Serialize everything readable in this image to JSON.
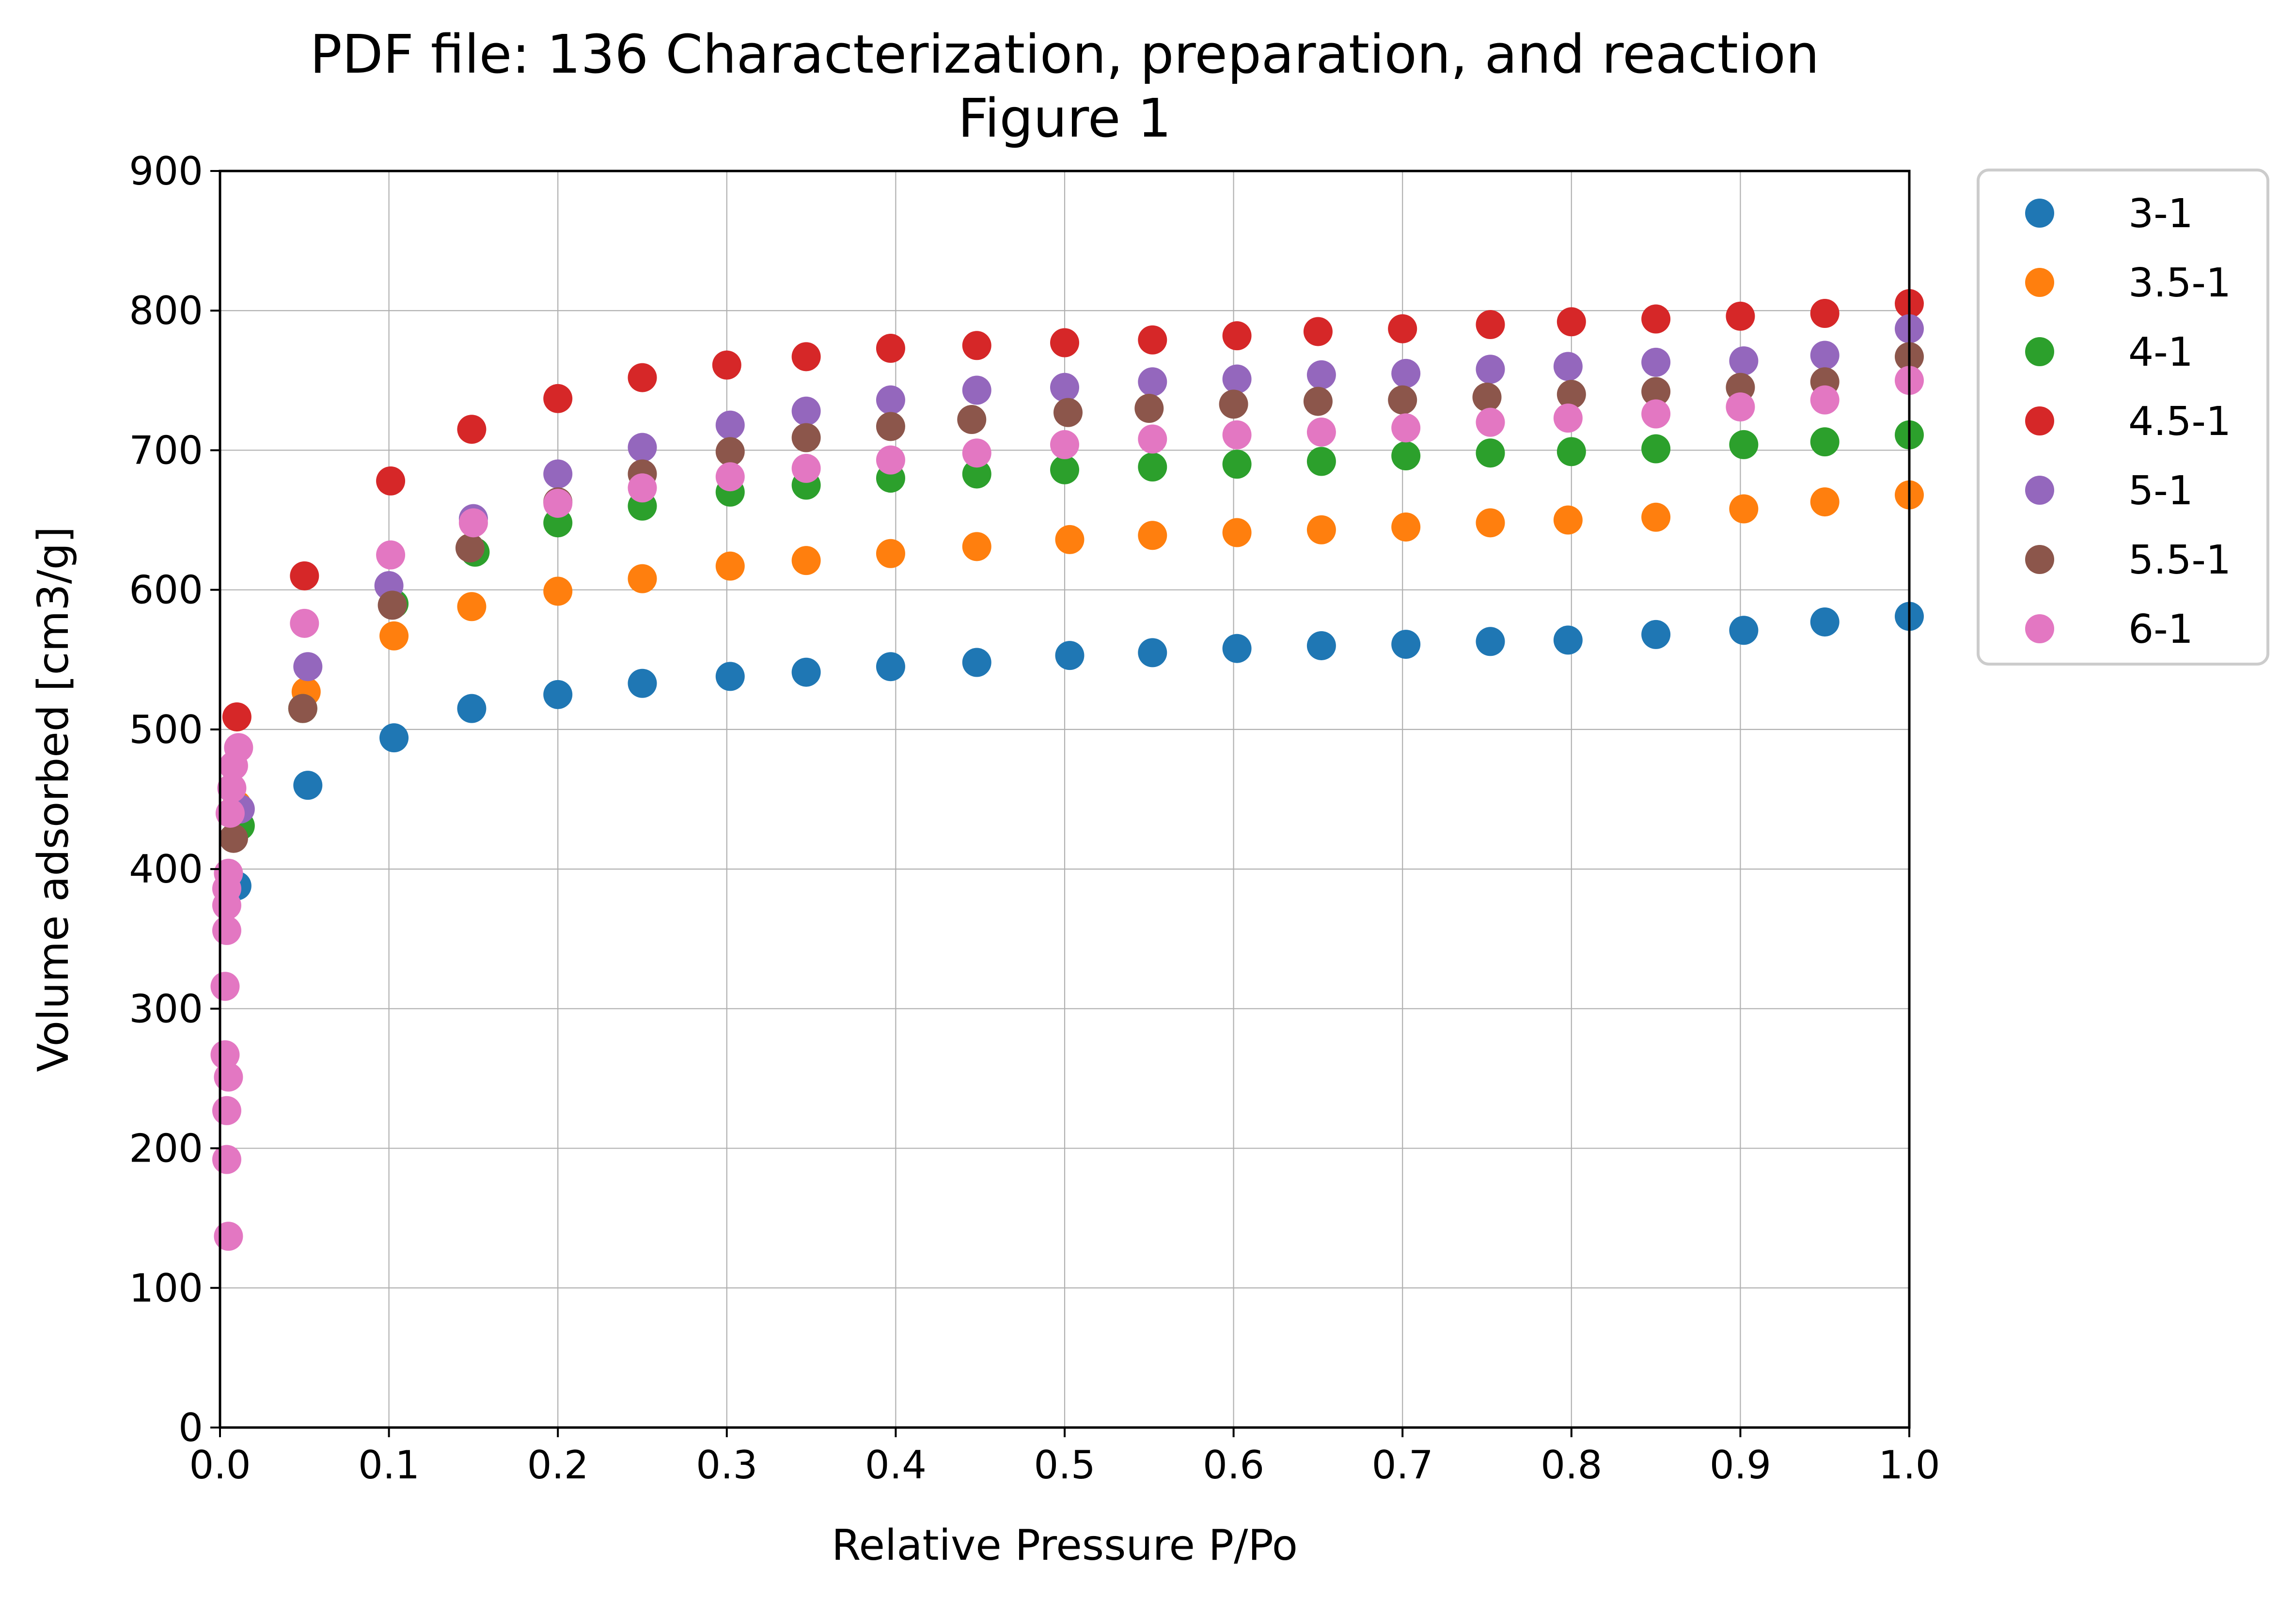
{
  "chart_data": {
    "type": "scatter",
    "title": "PDF file: 136 Characterization, preparation, and reaction",
    "subtitle": "Figure 1",
    "xlabel": "Relative Pressure P/Po",
    "ylabel": "Volume adsorbed [cm3/g]",
    "xlim": [
      0,
      1.0
    ],
    "ylim": [
      0,
      900
    ],
    "xticks": [
      "0.0",
      "0.1",
      "0.2",
      "0.3",
      "0.4",
      "0.5",
      "0.6",
      "0.7",
      "0.8",
      "0.9",
      "1.0"
    ],
    "yticks": [
      "0",
      "100",
      "200",
      "300",
      "400",
      "500",
      "600",
      "700",
      "800",
      "900"
    ],
    "grid": true,
    "legend_position": "outside-right-top",
    "series": [
      {
        "name": "3-1",
        "color": "#1f77b4",
        "x": [
          0.01,
          0.052,
          0.103,
          0.149,
          0.2,
          0.25,
          0.302,
          0.347,
          0.397,
          0.448,
          0.503,
          0.552,
          0.602,
          0.652,
          0.702,
          0.752,
          0.798,
          0.85,
          0.902,
          0.95,
          1.0
        ],
        "y": [
          388,
          460,
          494,
          515,
          525,
          533,
          538,
          541,
          545,
          548,
          553,
          555,
          558,
          560,
          561,
          563,
          564,
          568,
          571,
          577,
          581
        ]
      },
      {
        "name": "3.5-1",
        "color": "#ff7f0e",
        "x": [
          0.01,
          0.051,
          0.103,
          0.149,
          0.2,
          0.25,
          0.302,
          0.347,
          0.397,
          0.448,
          0.503,
          0.552,
          0.602,
          0.652,
          0.702,
          0.752,
          0.798,
          0.85,
          0.902,
          0.95,
          1.0
        ],
        "y": [
          446,
          527,
          567,
          588,
          599,
          608,
          617,
          621,
          626,
          631,
          636,
          639,
          641,
          643,
          645,
          648,
          650,
          652,
          658,
          663,
          668
        ]
      },
      {
        "name": "4-1",
        "color": "#2ca02c",
        "x": [
          0.012,
          0.049,
          0.103,
          0.151,
          0.2,
          0.25,
          0.302,
          0.347,
          0.397,
          0.448,
          0.5,
          0.552,
          0.602,
          0.652,
          0.702,
          0.752,
          0.8,
          0.85,
          0.902,
          0.95,
          1.0
        ],
        "y": [
          431,
          515,
          590,
          627,
          648,
          660,
          670,
          675,
          680,
          683,
          686,
          688,
          690,
          692,
          696,
          698,
          699,
          701,
          704,
          706,
          711
        ]
      },
      {
        "name": "4.5-1",
        "color": "#d62728",
        "x": [
          0.01,
          0.05,
          0.101,
          0.149,
          0.2,
          0.25,
          0.3,
          0.347,
          0.397,
          0.448,
          0.5,
          0.552,
          0.602,
          0.65,
          0.7,
          0.752,
          0.8,
          0.85,
          0.9,
          0.95,
          1.0
        ],
        "y": [
          509,
          610,
          678,
          715,
          737,
          752,
          761,
          767,
          773,
          775,
          777,
          779,
          782,
          785,
          787,
          790,
          792,
          794,
          796,
          798,
          805
        ]
      },
      {
        "name": "5-1",
        "color": "#9467bd",
        "x": [
          0.012,
          0.052,
          0.1,
          0.15,
          0.2,
          0.25,
          0.302,
          0.347,
          0.397,
          0.448,
          0.5,
          0.552,
          0.602,
          0.652,
          0.702,
          0.752,
          0.798,
          0.85,
          0.902,
          0.95,
          1.0
        ],
        "y": [
          443,
          545,
          603,
          651,
          683,
          702,
          718,
          728,
          736,
          743,
          745,
          749,
          751,
          754,
          755,
          758,
          760,
          763,
          764,
          768,
          787
        ]
      },
      {
        "name": "5.5-1",
        "color": "#8c564b",
        "x": [
          0.008,
          0.049,
          0.102,
          0.148,
          0.2,
          0.25,
          0.302,
          0.347,
          0.397,
          0.445,
          0.502,
          0.55,
          0.6,
          0.65,
          0.7,
          0.75,
          0.8,
          0.85,
          0.9,
          0.95,
          1.0
        ],
        "y": [
          422,
          515,
          589,
          630,
          663,
          683,
          699,
          709,
          717,
          722,
          727,
          730,
          733,
          735,
          736,
          738,
          740,
          742,
          745,
          749,
          767
        ]
      },
      {
        "name": "6-1",
        "color": "#e377c2",
        "x": [
          0.005,
          0.004,
          0.004,
          0.005,
          0.003,
          0.003,
          0.004,
          0.004,
          0.004,
          0.005,
          0.006,
          0.007,
          0.008,
          0.011,
          0.05,
          0.101,
          0.15,
          0.2,
          0.25,
          0.302,
          0.347,
          0.397,
          0.448,
          0.5,
          0.552,
          0.602,
          0.652,
          0.702,
          0.752,
          0.798,
          0.85,
          0.9,
          0.95,
          1.0
        ],
        "y": [
          137,
          192,
          227,
          251,
          267,
          316,
          356,
          374,
          386,
          397,
          440,
          458,
          474,
          487,
          576,
          625,
          648,
          662,
          673,
          681,
          687,
          693,
          698,
          704,
          708,
          711,
          713,
          716,
          720,
          723,
          726,
          731,
          736,
          750
        ]
      }
    ]
  }
}
